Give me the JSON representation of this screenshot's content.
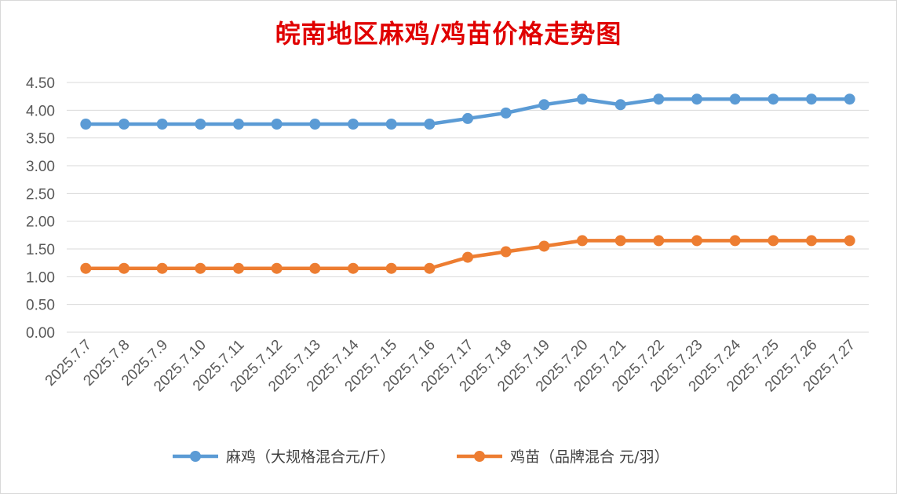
{
  "chart_data": {
    "type": "line",
    "title": "皖南地区麻鸡/鸡苗价格走势图",
    "categories": [
      "2025.7.7",
      "2025.7.8",
      "2025.7.9",
      "2025.7.10",
      "2025.7.11",
      "2025.7.12",
      "2025.7.13",
      "2025.7.14",
      "2025.7.15",
      "2025.7.16",
      "2025.7.17",
      "2025.7.18",
      "2025.7.19",
      "2025.7.20",
      "2025.7.21",
      "2025.7.22",
      "2025.7.23",
      "2025.7.24",
      "2025.7.25",
      "2025.7.26",
      "2025.7.27"
    ],
    "yticks": [
      "0.00",
      "0.50",
      "1.00",
      "1.50",
      "2.00",
      "2.50",
      "3.00",
      "3.50",
      "4.00",
      "4.50"
    ],
    "ylim": [
      0,
      4.5
    ],
    "grid": true,
    "legend": "bottom",
    "series": [
      {
        "name": "麻鸡（大规格混合元/斤）",
        "color": "#5b9bd5",
        "values": [
          3.75,
          3.75,
          3.75,
          3.75,
          3.75,
          3.75,
          3.75,
          3.75,
          3.75,
          3.75,
          3.85,
          3.95,
          4.1,
          4.2,
          4.1,
          4.2,
          4.2,
          4.2,
          4.2,
          4.2,
          4.2
        ]
      },
      {
        "name": "鸡苗（品牌混合 元/羽）",
        "color": "#ed7d31",
        "values": [
          1.15,
          1.15,
          1.15,
          1.15,
          1.15,
          1.15,
          1.15,
          1.15,
          1.15,
          1.15,
          1.35,
          1.45,
          1.55,
          1.65,
          1.65,
          1.65,
          1.65,
          1.65,
          1.65,
          1.65,
          1.65
        ]
      }
    ]
  }
}
